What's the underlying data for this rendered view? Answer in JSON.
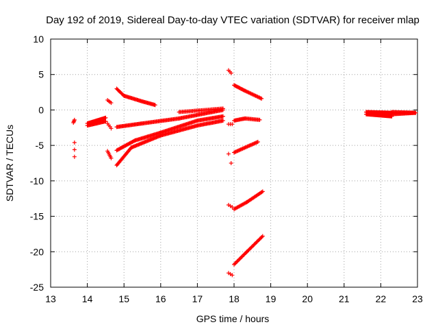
{
  "chart_data": {
    "type": "scatter",
    "title": "Day 192 of 2019, Sidereal Day-to-day VTEC variation (SDTVAR) for receiver mlap",
    "xlabel": "GPS time / hours",
    "ylabel": "SDTVAR / TECUs",
    "xlim": [
      13,
      23
    ],
    "ylim": [
      -25,
      10
    ],
    "xticks": [
      13,
      14,
      15,
      16,
      17,
      18,
      19,
      20,
      21,
      22,
      23
    ],
    "yticks": [
      -25,
      -20,
      -15,
      -10,
      -5,
      0,
      5,
      10
    ],
    "grid": true,
    "marker": "+",
    "color": "#ff0000",
    "segments": [
      {
        "x": [
          13.62,
          13.65
        ],
        "y": [
          -1.8,
          -1.4
        ],
        "n": 4
      },
      {
        "x": [
          13.65,
          13.65
        ],
        "y": [
          -4.6,
          -6.6
        ],
        "n": 3
      },
      {
        "x": [
          14.0,
          14.5
        ],
        "y": [
          -1.9,
          -1.1
        ],
        "n": 30
      },
      {
        "x": [
          14.0,
          14.5
        ],
        "y": [
          -2.2,
          -1.6
        ],
        "n": 25
      },
      {
        "x": [
          14.55,
          14.65
        ],
        "y": [
          1.4,
          1.0
        ],
        "n": 4
      },
      {
        "x": [
          14.55,
          14.65
        ],
        "y": [
          -1.9,
          -2.6
        ],
        "n": 4
      },
      {
        "x": [
          14.55,
          14.65
        ],
        "y": [
          -5.8,
          -6.8
        ],
        "n": 6
      },
      {
        "x": [
          14.8,
          15.0
        ],
        "y": [
          3.0,
          2.0
        ],
        "n": 10
      },
      {
        "x": [
          15.0,
          15.5
        ],
        "y": [
          2.0,
          1.2
        ],
        "n": 22
      },
      {
        "x": [
          15.5,
          15.85
        ],
        "y": [
          1.2,
          0.7
        ],
        "n": 16
      },
      {
        "x": [
          14.8,
          15.5
        ],
        "y": [
          -2.4,
          -1.9
        ],
        "n": 30
      },
      {
        "x": [
          15.5,
          16.5
        ],
        "y": [
          -1.9,
          -1.2
        ],
        "n": 40
      },
      {
        "x": [
          16.5,
          17.7
        ],
        "y": [
          -1.2,
          0.0
        ],
        "n": 48
      },
      {
        "x": [
          14.8,
          15.3
        ],
        "y": [
          -5.7,
          -4.3
        ],
        "n": 22
      },
      {
        "x": [
          15.3,
          16.0
        ],
        "y": [
          -4.3,
          -3.2
        ],
        "n": 30
      },
      {
        "x": [
          16.0,
          17.0
        ],
        "y": [
          -3.2,
          -1.5
        ],
        "n": 42
      },
      {
        "x": [
          17.0,
          17.7
        ],
        "y": [
          -1.5,
          -0.9
        ],
        "n": 30
      },
      {
        "x": [
          14.8,
          15.2
        ],
        "y": [
          -7.8,
          -5.3
        ],
        "n": 22
      },
      {
        "x": [
          15.2,
          16.0
        ],
        "y": [
          -5.3,
          -3.6
        ],
        "n": 34
      },
      {
        "x": [
          16.0,
          17.0
        ],
        "y": [
          -3.6,
          -2.2
        ],
        "n": 42
      },
      {
        "x": [
          17.0,
          17.7
        ],
        "y": [
          -2.2,
          -1.5
        ],
        "n": 30
      },
      {
        "x": [
          16.5,
          17.7
        ],
        "y": [
          -0.3,
          0.2
        ],
        "n": 40
      },
      {
        "x": [
          17.85,
          17.92
        ],
        "y": [
          5.6,
          5.2
        ],
        "n": 3
      },
      {
        "x": [
          18.0,
          18.3
        ],
        "y": [
          3.5,
          2.7
        ],
        "n": 14
      },
      {
        "x": [
          18.3,
          18.75
        ],
        "y": [
          2.7,
          1.6
        ],
        "n": 18
      },
      {
        "x": [
          17.85,
          17.95
        ],
        "y": [
          -2.0,
          -2.0
        ],
        "n": 3
      },
      {
        "x": [
          18.0,
          18.3
        ],
        "y": [
          -1.5,
          -1.2
        ],
        "n": 14
      },
      {
        "x": [
          18.3,
          18.7
        ],
        "y": [
          -1.2,
          -1.4
        ],
        "n": 16
      },
      {
        "x": [
          17.85,
          17.92
        ],
        "y": [
          -6.2,
          -7.5
        ],
        "n": 2
      },
      {
        "x": [
          18.0,
          18.65
        ],
        "y": [
          -6.0,
          -4.5
        ],
        "n": 26
      },
      {
        "x": [
          17.85,
          17.95
        ],
        "y": [
          -13.4,
          -13.7
        ],
        "n": 3
      },
      {
        "x": [
          18.0,
          18.35
        ],
        "y": [
          -14.0,
          -13.0
        ],
        "n": 14
      },
      {
        "x": [
          18.35,
          18.78
        ],
        "y": [
          -13.0,
          -11.5
        ],
        "n": 18
      },
      {
        "x": [
          17.85,
          17.95
        ],
        "y": [
          -23.0,
          -23.3
        ],
        "n": 3
      },
      {
        "x": [
          18.0,
          18.35
        ],
        "y": [
          -21.8,
          -20.0
        ],
        "n": 14
      },
      {
        "x": [
          18.35,
          18.78
        ],
        "y": [
          -20.0,
          -17.8
        ],
        "n": 18
      },
      {
        "x": [
          21.6,
          22.3
        ],
        "y": [
          -0.3,
          -0.4
        ],
        "n": 44
      },
      {
        "x": [
          21.6,
          22.3
        ],
        "y": [
          -0.6,
          -0.9
        ],
        "n": 44
      },
      {
        "x": [
          22.3,
          22.95
        ],
        "y": [
          -0.3,
          -0.4
        ],
        "n": 30
      },
      {
        "x": [
          22.3,
          22.95
        ],
        "y": [
          -0.6,
          -0.4
        ],
        "n": 30
      }
    ]
  }
}
